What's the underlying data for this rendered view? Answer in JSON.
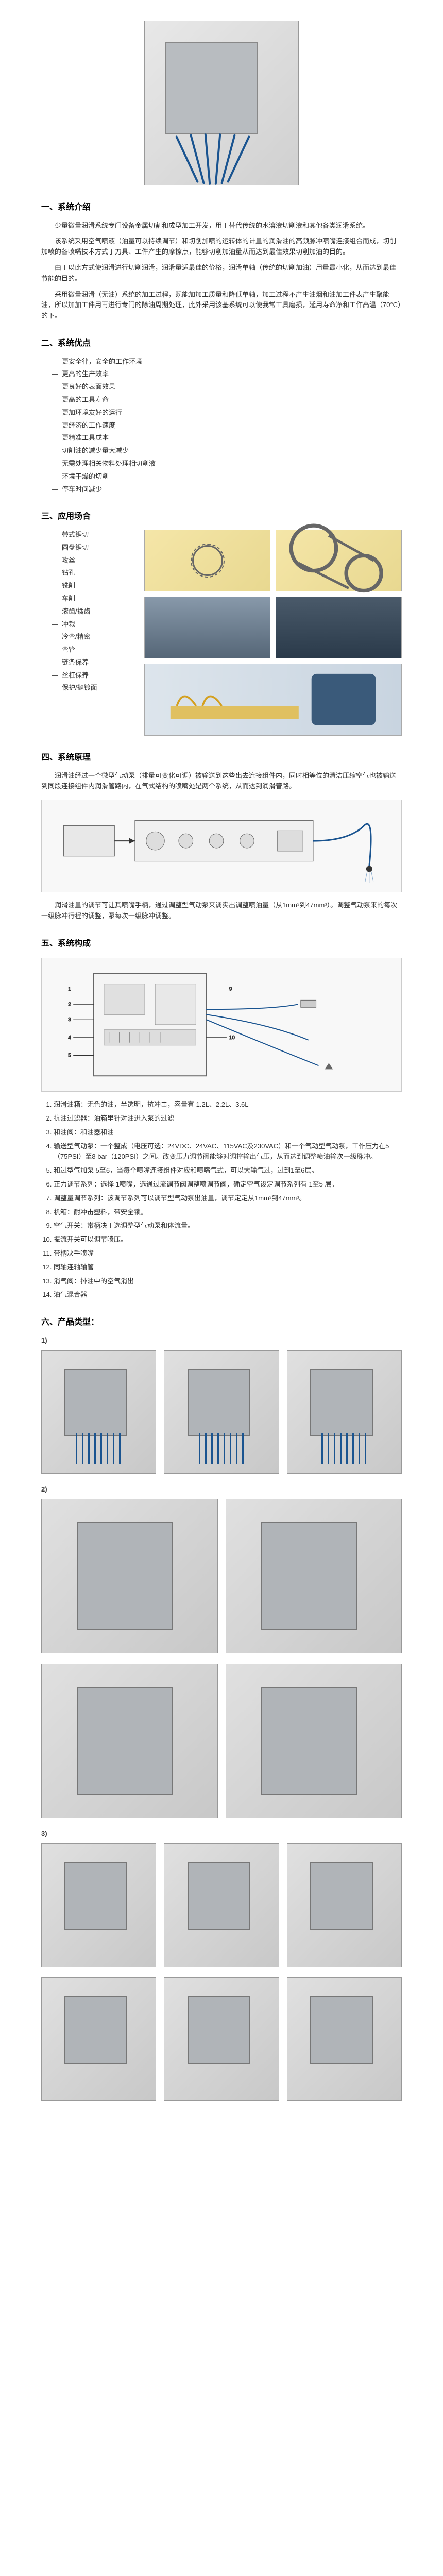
{
  "sections": {
    "s1": {
      "title": "一、系统介绍",
      "paras": [
        "少量微量润滑系统专门设备金属切割和成型加工开发，用于替代传统的水溶液切削液和其他各类润滑系统。",
        "该系统采用空气喷液（油量可以持续调节）和切削加喷的运转体的计量的润滑油的高频脉冲喷嘴连接组合而成，切削加喷的各喷嘴技术方式于刀具、工件产生的摩擦点，能够切削加油量从而达到最佳效果切削加油的目的。",
        "由于以此方式使润滑进行切削润滑，润滑量适最佳的价格，润滑单轴（传统的切削加油）用量最小化，从而达到最佳节能的目的。",
        "采用微量润滑（无油）系统的加工过程，既能加加工质量和降低单轴，加工过程不产生油烟和油加工件表产生聚能油，所以加加工件用再进行专门的除油周期处理，此外采用该基系统可以使我常工具磨损，延用寿命净和工作高温（70°C）的下。"
      ]
    },
    "s2": {
      "title": "二、系统优点",
      "items": [
        "更安全律，安全的工作环境",
        "更高的生产效率",
        "更良好的表面效果",
        "更高的工具寿命",
        "更加环境友好的运行",
        "更经济的工作速度",
        "更精准工具成本",
        "切削油的减少量大减少",
        "无需处理相关物料处理相切削液",
        "环境干燥的切削",
        "停车时间减少"
      ]
    },
    "s3": {
      "title": "三、应用场合",
      "items": [
        "带式锯切",
        "圆盘锯切",
        "攻丝",
        "钻孔",
        "铣削",
        "车削",
        "滚齿/插齿",
        "冲裁",
        "冷弯/精密",
        "弯管",
        "链条保养",
        "丝杠保养",
        "保护/抛镀面"
      ]
    },
    "s4": {
      "title": "四、系统原理",
      "paras": [
        "润滑油经过一个微型气动泵（排量可变化可调）被输送到这些出去连接组件内，同时相等位的清洁压缩空气也被输送到同段连接组件内润滑管路内，在气式结构的喷嘴处是两个系统，从而达到润滑管路。",
        "润滑油量的调节可让其喷嘴手柄，通过调整型气动泵来调实出调整喷油量（从1mm³到47mm³）。调整气动泵来的每次一级脉冲行程的调整，泵每次一级脉冲调整。"
      ]
    },
    "s5": {
      "title": "五、系统构成",
      "components": [
        "润滑油箱：无色的油，半透明，抗冲击，容量有 1.2L、2.2L、3.6L",
        "抗油过滤器：油箱里针对油进入泵的过滤",
        "和油阀：和油器和油",
        "输送型气动泵：一个整成（电压可选：24VDC、24VAC、115VAC及230VAC）和一个气动型气动泵，工作压力在5（75PSI）至8 bar（120PSI）之间。改变压力调节阀能够对调控输出气压，从而达到调整喷油输次一级脉冲。",
        "和过型气加泵 5至6，当每个喷嘴连接组件对应和喷嘴气式，可以大输气过，过到1至6层。",
        "正力调节系列：选择 1喷嘴，选通过流调节阀调整喷调节阀，确定空气设定调节系列有 1至5 层。",
        "调整量调节系列：该调节系列可以调节型气动泵出油量，调节定定从1mm³到47mm³。",
        "机箱：耐冲击塑料，带安全锁。",
        "空气开关：带柄决于选调整型气动泵和体流量。",
        "振流开关可以调节喷压。",
        "带柄决手喷嘴",
        "同轴连轴轴管",
        "消气阀：排油中的空气消出",
        "油气混合器"
      ]
    },
    "s6": {
      "title": "六、产品类型："
    }
  },
  "style": {
    "saw_bg": "#f5e6a8",
    "tube_color": "#1a5490",
    "box_color": "#b8bcc0"
  }
}
